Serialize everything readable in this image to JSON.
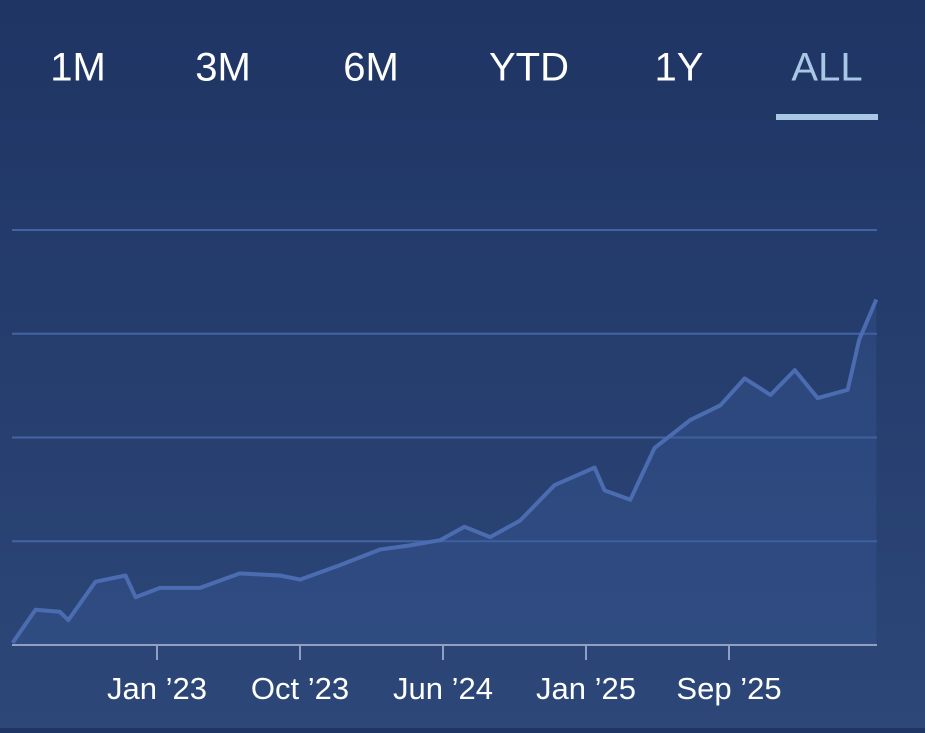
{
  "tabs": [
    "1M",
    "3M",
    "6M",
    "YTD",
    "1Y",
    "ALL"
  ],
  "selected_tab": 5,
  "chart_data": {
    "type": "line",
    "color": "#4b6cb0",
    "x": [
      -1.01,
      -0.85,
      -0.68,
      -0.62,
      -0.43,
      -0.22,
      -0.15,
      0.02,
      0.3,
      0.58,
      0.86,
      1.0,
      1.28,
      1.56,
      1.77,
      1.98,
      2.15,
      2.33,
      2.54,
      2.78,
      3.06,
      3.13,
      3.31,
      3.48,
      3.73,
      3.94,
      4.11,
      4.29,
      4.46,
      4.62,
      4.83,
      4.91,
      5.03
    ],
    "values": [
      0.02,
      0.34,
      0.32,
      0.24,
      0.61,
      0.67,
      0.46,
      0.55,
      0.55,
      0.69,
      0.67,
      0.63,
      0.77,
      0.92,
      0.96,
      1.01,
      1.14,
      1.04,
      1.2,
      1.54,
      1.71,
      1.49,
      1.4,
      1.9,
      2.17,
      2.31,
      2.57,
      2.41,
      2.65,
      2.38,
      2.46,
      2.94,
      3.33
    ],
    "xlim": [
      -1.014,
      5.035
    ],
    "ylim": [
      0,
      4
    ],
    "xticks": [
      {
        "value": 0,
        "label": "Jan ’23"
      },
      {
        "value": 1,
        "label": "Oct ’23"
      },
      {
        "value": 2,
        "label": "Jun ’24"
      },
      {
        "value": 3,
        "label": "Jan ’25"
      },
      {
        "value": 4,
        "label": "Sep ’25"
      }
    ],
    "gridlines": [
      1,
      2,
      3,
      4
    ]
  }
}
